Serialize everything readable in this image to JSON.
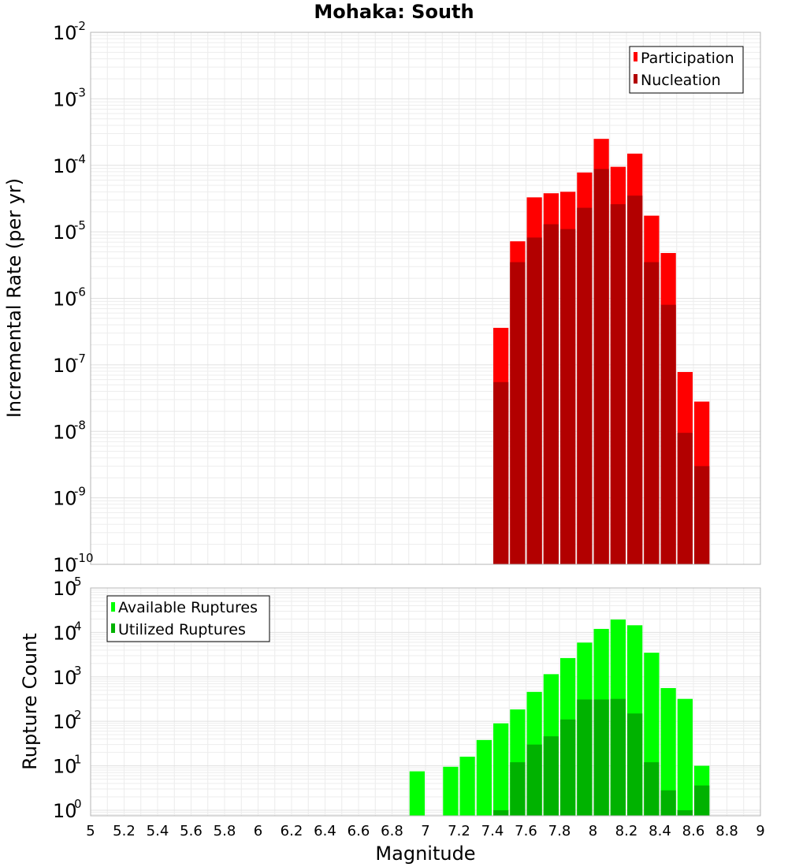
{
  "chart_data": [
    {
      "type": "bar",
      "title": "Mohaka: South",
      "xlabel": "",
      "ylabel": "Incremental Rate (per yr)",
      "yscale": "log",
      "ylim": [
        1e-10,
        0.01
      ],
      "xlim": [
        5,
        9
      ],
      "bin_width": 0.1,
      "grid": true,
      "legend_position": "top-right",
      "ytick_base": "10",
      "yticks_exponent": [
        "-2",
        "-3",
        "-4",
        "-5",
        "-6",
        "-7",
        "-8",
        "-9",
        "-10"
      ],
      "x": [
        7.45,
        7.55,
        7.65,
        7.75,
        7.85,
        7.95,
        8.05,
        8.15,
        8.25,
        8.35,
        8.45,
        8.55,
        8.65
      ],
      "series": [
        {
          "name": "Participation",
          "color": "#ff0000",
          "values": [
            3.6e-07,
            7.2e-06,
            3.3e-05,
            3.8e-05,
            4e-05,
            7.8e-05,
            0.00025,
            9.5e-05,
            0.00015,
            1.75e-05,
            4.8e-06,
            7.8e-08,
            2.8e-08
          ]
        },
        {
          "name": "Nucleation",
          "color": "#b20000",
          "values": [
            5.5e-08,
            3.5e-06,
            8.2e-06,
            1.3e-05,
            1.1e-05,
            2.3e-05,
            8.8e-05,
            2.6e-05,
            3.5e-05,
            3.5e-06,
            8e-07,
            9.5e-09,
            3e-09
          ]
        }
      ]
    },
    {
      "type": "bar",
      "title": "",
      "xlabel": "Magnitude",
      "ylabel": "Rupture Count",
      "yscale": "log",
      "ylim": [
        0.75,
        100000.0
      ],
      "xlim": [
        5,
        9
      ],
      "bin_width": 0.1,
      "grid": true,
      "legend_position": "top-left",
      "ytick_base": "10",
      "yticks_exponent": [
        "5",
        "4",
        "3",
        "2",
        "1",
        "0"
      ],
      "xticks": [
        "5",
        "5.2",
        "5.4",
        "5.6",
        "5.8",
        "6",
        "6.2",
        "6.4",
        "6.6",
        "6.8",
        "7",
        "7.2",
        "7.4",
        "7.6",
        "7.8",
        "8",
        "8.2",
        "8.4",
        "8.6",
        "8.8",
        "9"
      ],
      "x": [
        6.95,
        7.15,
        7.25,
        7.35,
        7.45,
        7.55,
        7.65,
        7.75,
        7.85,
        7.95,
        8.05,
        8.15,
        8.25,
        8.35,
        8.45,
        8.55,
        8.65
      ],
      "series": [
        {
          "name": "Available Ruptures",
          "color": "#00ff00",
          "values": [
            7.5,
            9.5,
            16,
            38,
            90,
            185,
            460,
            1150,
            2650,
            5900,
            12000,
            19500,
            14500,
            3500,
            560,
            320,
            10
          ]
        },
        {
          "name": "Utilized Ruptures",
          "color": "#00b200",
          "values": [
            0,
            0,
            0,
            0,
            1.0,
            12,
            30,
            46,
            110,
            310,
            310,
            320,
            150,
            12,
            2.8,
            1.0,
            3.6
          ]
        }
      ]
    }
  ]
}
